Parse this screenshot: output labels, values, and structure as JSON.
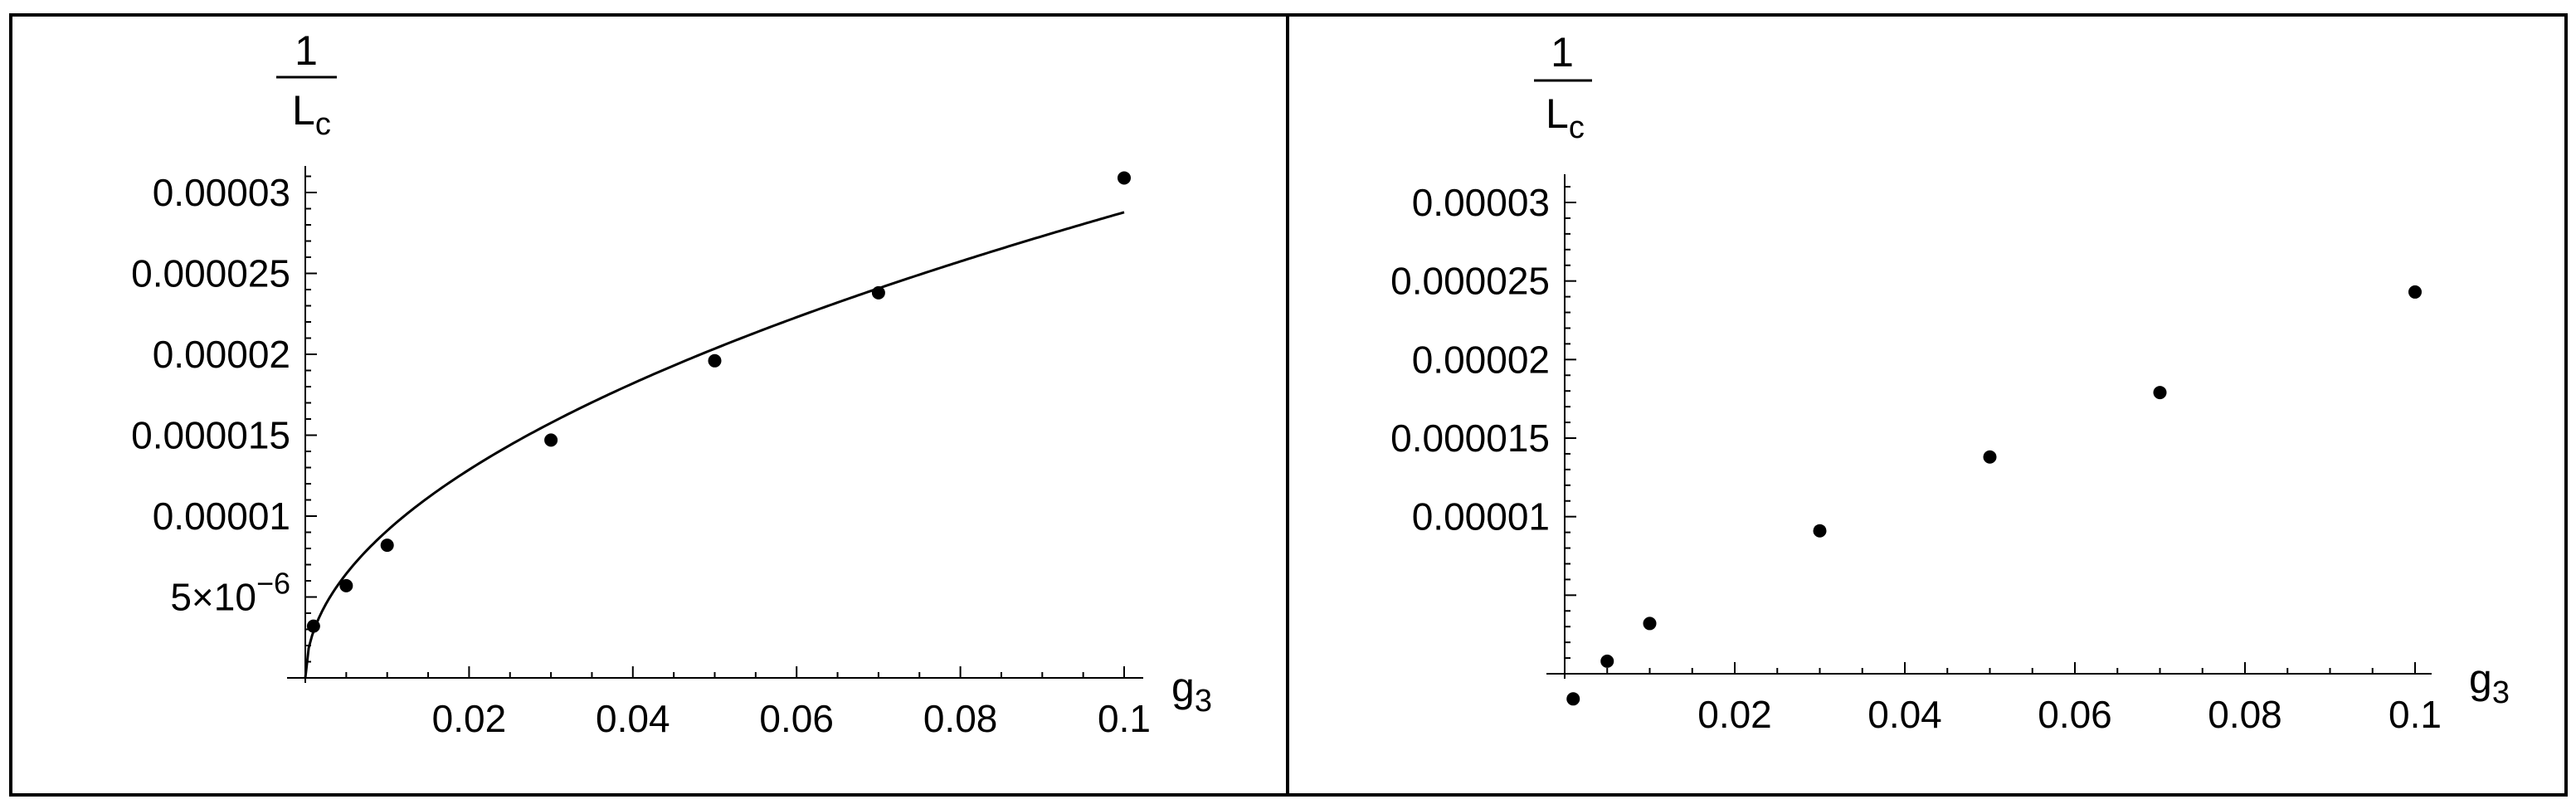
{
  "chart_data": [
    {
      "type": "scatter",
      "title": "",
      "xlabel": "g",
      "xlabel_sub": "3",
      "ylabel_num": "1",
      "ylabel_den": "L",
      "ylabel_den_sub": "c",
      "xlim": [
        0,
        0.1
      ],
      "ylim": [
        0,
        3e-05
      ],
      "grid": false,
      "xticks": [
        0.02,
        0.04,
        0.06,
        0.08,
        0.1
      ],
      "xtick_labels": [
        "0.02",
        "0.04",
        "0.06",
        "0.08",
        "0.1"
      ],
      "yticks": [
        5e-06,
        1e-05,
        1.5e-05,
        2e-05,
        2.5e-05,
        3e-05
      ],
      "ytick_labels": [
        "5×10",
        "0.00001",
        "0.000015",
        "0.00002",
        "0.000025",
        "0.00003"
      ],
      "ytick_exponent": "−6",
      "series": [
        {
          "kind": "points",
          "x": [
            0.001,
            0.005,
            0.01,
            0.03,
            0.05,
            0.07,
            0.1
          ],
          "y": [
            3.2e-06,
            5.7e-06,
            8.2e-06,
            1.47e-05,
            1.96e-05,
            2.38e-05,
            3.09e-05
          ]
        },
        {
          "kind": "fit-curve",
          "formula": "y = 0.0000910 * x^0.5"
        }
      ]
    },
    {
      "type": "scatter",
      "title": "",
      "xlabel": "g",
      "xlabel_sub": "3",
      "ylabel_num": "1",
      "ylabel_den": "L",
      "ylabel_den_sub": "c",
      "xlim": [
        0,
        0.1
      ],
      "ylim": [
        0,
        3e-05
      ],
      "grid": false,
      "xticks": [
        0.02,
        0.04,
        0.06,
        0.08,
        0.1
      ],
      "xtick_labels": [
        "0.02",
        "0.04",
        "0.06",
        "0.08",
        "0.1"
      ],
      "yticks": [
        1e-05,
        1.5e-05,
        2e-05,
        2.5e-05,
        3e-05
      ],
      "ytick_labels": [
        "0.00001",
        "0.000015",
        "0.00002",
        "0.000025",
        "0.00003"
      ],
      "series": [
        {
          "kind": "points",
          "x": [
            0.001,
            0.005,
            0.01,
            0.03,
            0.05,
            0.07,
            0.1
          ],
          "y": [
            -1.6e-06,
            8e-07,
            3.2e-06,
            9.1e-06,
            1.38e-05,
            1.79e-05,
            2.43e-05
          ]
        }
      ]
    }
  ]
}
